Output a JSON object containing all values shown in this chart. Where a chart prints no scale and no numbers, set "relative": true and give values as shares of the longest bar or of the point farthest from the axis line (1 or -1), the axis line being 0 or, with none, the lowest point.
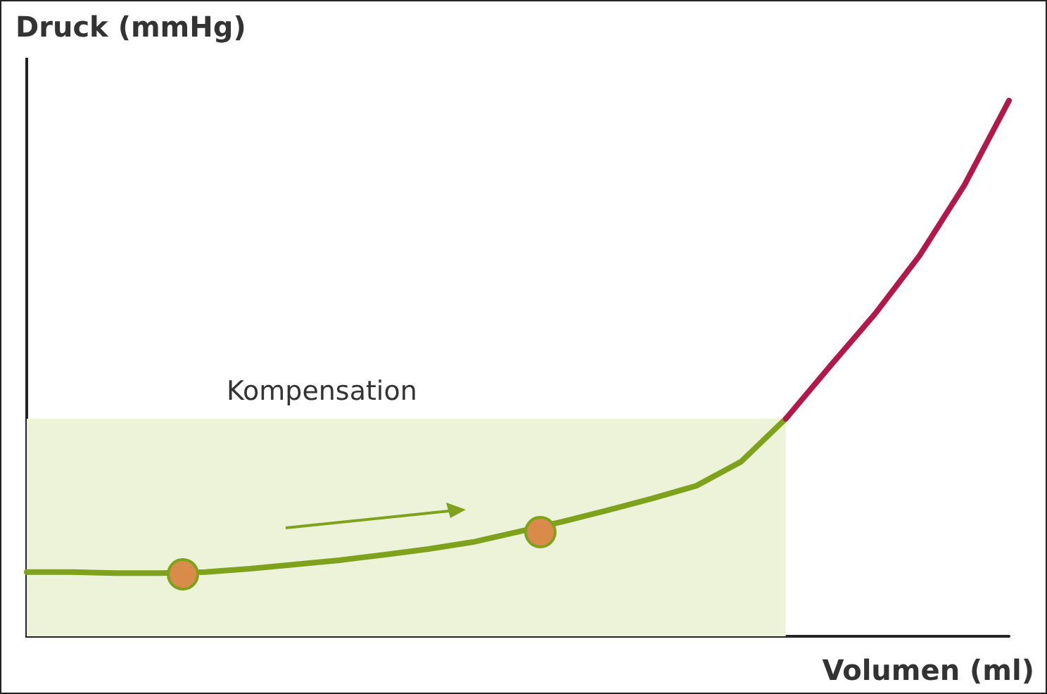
{
  "chart_data": {
    "type": "line",
    "relative": true,
    "xlabel": "Volumen (ml)",
    "ylabel": "Druck (mmHg)",
    "categories": [
      null,
      null,
      null,
      null,
      null,
      null,
      null,
      null,
      null,
      null,
      null,
      null,
      null,
      null,
      null,
      null,
      null,
      null,
      null,
      null,
      null,
      null,
      null
    ],
    "series": [
      {
        "color": "#7fa21d",
        "values": [
          0.12,
          0.12,
          0.118,
          0.118,
          0.12,
          0.126,
          0.134,
          0.142,
          0.152,
          0.163,
          0.176,
          0.195,
          0.214,
          0.235,
          0.257,
          0.281,
          0.326,
          0.406,
          null,
          null,
          null,
          null,
          null
        ]
      },
      {
        "color": "#b0194a",
        "values": [
          null,
          null,
          null,
          null,
          null,
          null,
          null,
          null,
          null,
          null,
          null,
          null,
          null,
          null,
          null,
          null,
          null,
          0.406,
          0.505,
          0.602,
          0.711,
          0.842,
          1
        ]
      }
    ],
    "bands": [
      {
        "axis": "y",
        "from": 0,
        "to": 0.406,
        "label": "Kompensation",
        "color": "#edf3d9"
      }
    ],
    "marker": "none",
    "grid": false
  }
}
